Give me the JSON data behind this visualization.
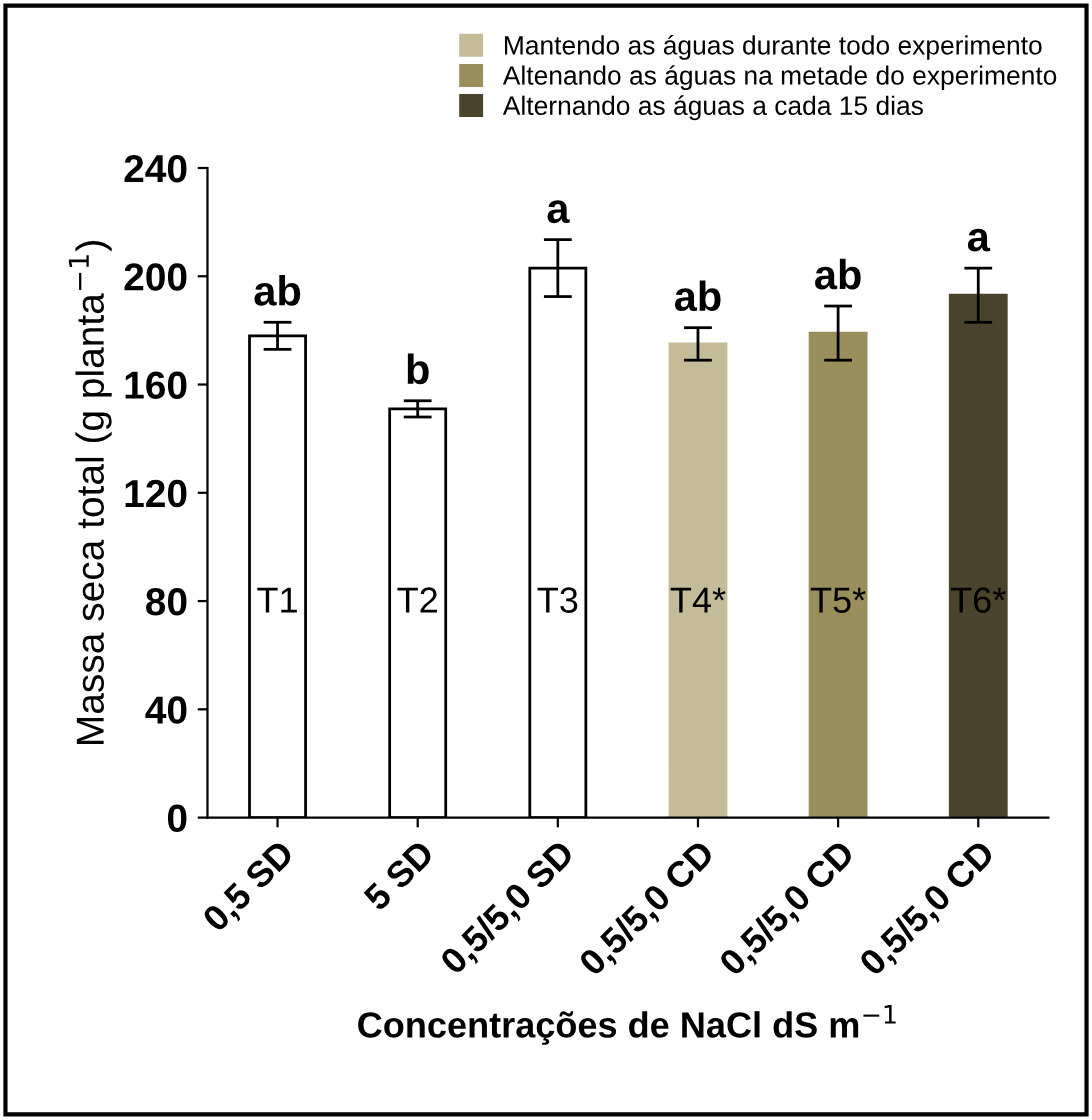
{
  "chart_data": {
    "type": "bar",
    "xlabel": "Concentrações de NaCl dS m$^{−1}$",
    "ylabel": "Massa seca total (g planta$^{−1}$)",
    "categories": [
      "0,5 SD",
      "5 SD",
      "0,5/5,0 SD",
      "0,5/5,0 CD",
      "0,5/5,0 CD",
      "0,5/5,0 CD"
    ],
    "series": [
      {
        "color": "#ffffff",
        "values": [
          178,
          151,
          203,
          null,
          null,
          null
        ],
        "errors": [
          5,
          3,
          10.5,
          null,
          null,
          null
        ]
      },
      {
        "name": "Mantendo as águas durante todo experimento",
        "color": "#c4bc98",
        "values": [
          null,
          null,
          null,
          175,
          null,
          null
        ],
        "errors": [
          null,
          null,
          null,
          6,
          null,
          null
        ]
      },
      {
        "name": "Altenando as águas na metade do experimento",
        "color": "#9a8f5c",
        "values": [
          null,
          null,
          null,
          null,
          179,
          null
        ],
        "errors": [
          null,
          null,
          null,
          null,
          10,
          null
        ]
      },
      {
        "name": "Alternando as águas a cada 15 dias",
        "color": "#4b442c",
        "values": [
          null,
          null,
          null,
          null,
          null,
          193
        ],
        "errors": [
          null,
          null,
          null,
          null,
          null,
          10
        ]
      }
    ],
    "ylim": [
      0,
      240
    ],
    "yticks": [
      0,
      40,
      80,
      120,
      160,
      200,
      240
    ],
    "grid": false,
    "legend": "top right",
    "annotations": [
      "ab",
      "b",
      "a",
      "ab",
      "ab",
      "a",
      "T1",
      "T2",
      "T3",
      "T4*",
      "T5*",
      "T6*"
    ]
  }
}
